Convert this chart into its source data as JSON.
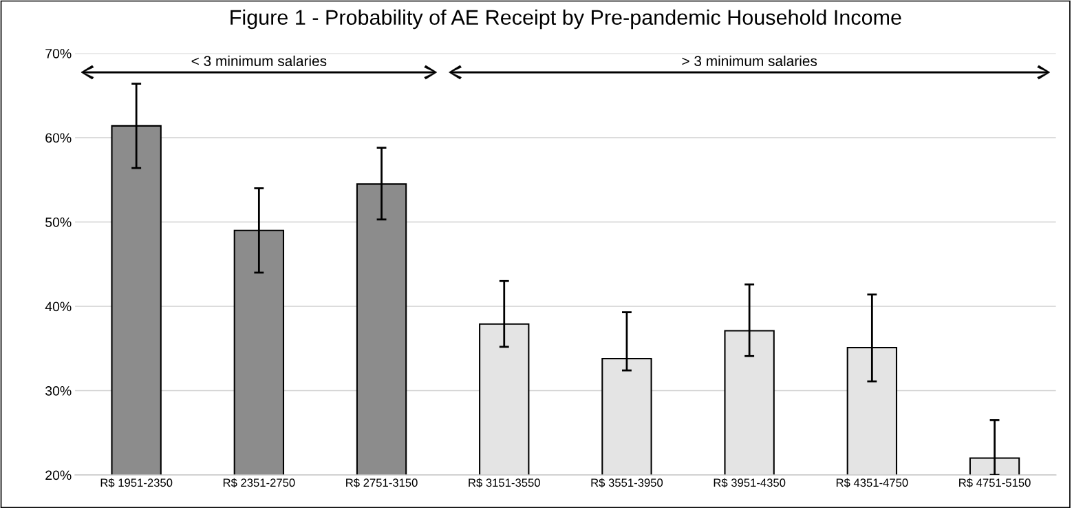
{
  "chart_data": {
    "type": "bar",
    "title": "Figure 1 - Probability of AE Receipt by Pre-pandemic Household Income",
    "categories": [
      "R$ 1951-2350",
      "R$ 2351-2750",
      "R$ 2751-3150",
      "R$ 3151-3550",
      "R$ 3551-3950",
      "R$ 3951-4350",
      "R$ 4351-4750",
      "R$ 4751-5150"
    ],
    "values": [
      61.4,
      49.0,
      54.5,
      37.9,
      33.8,
      37.1,
      35.1,
      22.0
    ],
    "colors": [
      "#8c8c8c",
      "#8c8c8c",
      "#8c8c8c",
      "#e4e4e4",
      "#e4e4e4",
      "#e4e4e4",
      "#e4e4e4",
      "#e4e4e4"
    ],
    "errors": [
      [
        56.4,
        66.4
      ],
      [
        44.0,
        54.0
      ],
      [
        50.3,
        58.8
      ],
      [
        35.2,
        43.0
      ],
      [
        32.4,
        39.3
      ],
      [
        34.1,
        42.6
      ],
      [
        31.1,
        41.4
      ],
      [
        20.0,
        26.5
      ]
    ],
    "annotations": [
      "< 3 minimum salaries",
      "> 3 minimum salaries"
    ],
    "ylim": [
      20,
      70
    ],
    "yticks": [
      {
        "value": 20,
        "label": "20%"
      },
      {
        "value": 30,
        "label": "30%"
      },
      {
        "value": 40,
        "label": "40%"
      },
      {
        "value": 50,
        "label": "50%"
      },
      {
        "value": 60,
        "label": "60%"
      },
      {
        "value": 70,
        "label": "70%"
      }
    ],
    "grid": "y"
  }
}
